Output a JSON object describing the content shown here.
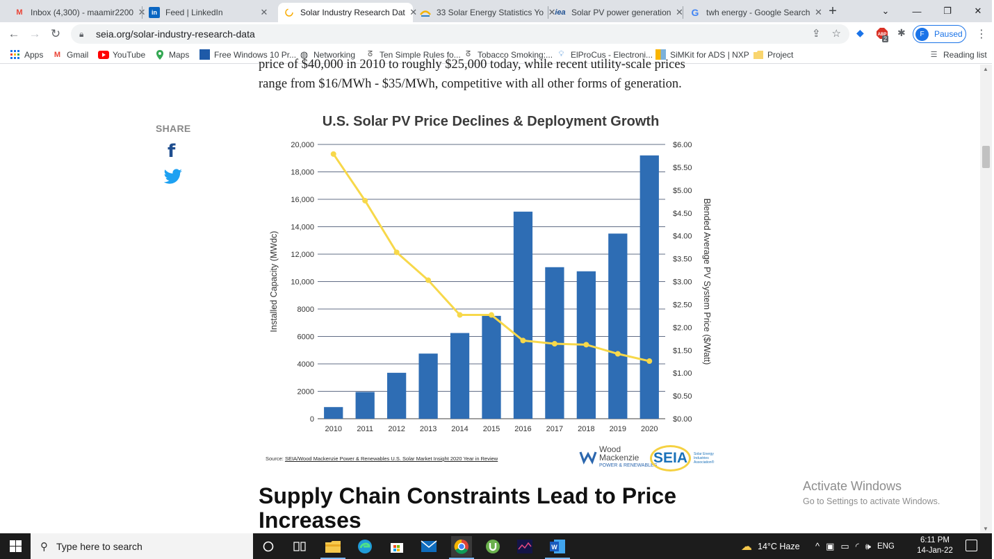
{
  "browser": {
    "tabs": [
      {
        "title": "Inbox (4,300) - maamir2200",
        "icon": "gmail-icon",
        "color": "#ea4335"
      },
      {
        "title": "Feed | LinkedIn",
        "icon": "linkedin-icon",
        "color": "#0a66c2"
      },
      {
        "title": "Solar Industry Research Dat",
        "icon": "loading-icon",
        "color": "#f9ab00"
      },
      {
        "title": "33 Solar Energy Statistics Yo",
        "icon": "solar-site-icon",
        "color": "#2f80c6"
      },
      {
        "title": "Solar PV power generation",
        "icon": "iea-icon",
        "color": "#1d4f91"
      },
      {
        "title": "twh energy - Google Search",
        "icon": "google-icon",
        "color": "#4285f4"
      }
    ],
    "url": "seia.org/solar-industry-research-data",
    "profile_initial": "F",
    "profile_status": "Paused",
    "abp_count": "2",
    "bookmarks": [
      {
        "label": "Apps",
        "icon": "apps-grid-icon"
      },
      {
        "label": "Gmail",
        "icon": "gmail-icon"
      },
      {
        "label": "YouTube",
        "icon": "youtube-icon"
      },
      {
        "label": "Maps",
        "icon": "maps-pin-icon"
      },
      {
        "label": "Free Windows 10 Pr...",
        "icon": "windows-icon"
      },
      {
        "label": "Networking",
        "icon": "globe-icon"
      },
      {
        "label": "Ten Simple Rules fo...",
        "icon": "scholar-icon"
      },
      {
        "label": "Tobacco Smoking:...",
        "icon": "scholar-icon"
      },
      {
        "label": "ElProCus - Electroni...",
        "icon": "bulb-icon"
      },
      {
        "label": "SiMKit for ADS | NXP",
        "icon": "nxp-icon"
      },
      {
        "label": "Project",
        "icon": "folder-icon"
      }
    ],
    "reading_list": "Reading list"
  },
  "page": {
    "para_line1": "price of $40,000 in 2010 to roughly $25,000 today, while recent utility-scale prices",
    "para_line2": "range from $16/MWh - $35/MWh, competitive with all other forms of generation.",
    "share_label": "SHARE",
    "chart_title": "U.S. Solar PV Price Declines & Deployment Growth",
    "source_prefix": "Source: ",
    "source_link": "SEIA/Wood Mackenzie Power & Renewables U.S. Solar Market Insight 2020 Year in Review",
    "logo_wm_line1": "Wood",
    "logo_wm_line2": "Mackenzie",
    "logo_wm_line3": "POWER & RENEWABLES",
    "logo_seia": "SEIA",
    "logo_seia_sub": "Solar Energy Industries Association®",
    "heading": "Supply Chain Constraints Lead to Price Increases",
    "activate_title": "Activate Windows",
    "activate_sub": "Go to Settings to activate Windows."
  },
  "chart_data": {
    "type": "bar+line",
    "title": "U.S. Solar PV Price Declines & Deployment Growth",
    "categories": [
      "2010",
      "2011",
      "2012",
      "2013",
      "2014",
      "2015",
      "2016",
      "2017",
      "2018",
      "2019",
      "2020"
    ],
    "series": [
      {
        "name": "Installed Capacity (MWdc)",
        "type": "bar",
        "axis": "left",
        "color": "#2e6db4",
        "values": [
          850,
          1950,
          3350,
          4750,
          6250,
          7500,
          15100,
          11050,
          10750,
          13500,
          19200
        ]
      },
      {
        "name": "Blended Average PV System Price ($/Watt)",
        "type": "line",
        "axis": "right",
        "color": "#f7d84a",
        "values": [
          5.79,
          4.77,
          3.64,
          3.03,
          2.27,
          2.27,
          1.71,
          1.64,
          1.62,
          1.42,
          1.26
        ]
      }
    ],
    "ylabel": "Installed Capacity (MWdc)",
    "y2label": "Blended Average PV System Price ($/Watt)",
    "ylim": [
      0,
      20000
    ],
    "y2lim": [
      0,
      6
    ],
    "yticks": [
      "0",
      "2000",
      "4000",
      "6000",
      "8000",
      "10,000",
      "12,000",
      "14,000",
      "16,000",
      "18,000",
      "20,000"
    ],
    "y2ticks": [
      "$0.00",
      "$0.50",
      "$1.00",
      "$1.50",
      "$2.00",
      "$2.50",
      "$3.00",
      "$3.50",
      "$4.00",
      "$4.50",
      "$5.00",
      "$5.50",
      "$6.00"
    ],
    "grid": true
  },
  "taskbar": {
    "search_placeholder": "Type here to search",
    "weather": "14°C  Haze",
    "lang": "ENG",
    "time": "6:11 PM",
    "date": "14-Jan-22"
  }
}
